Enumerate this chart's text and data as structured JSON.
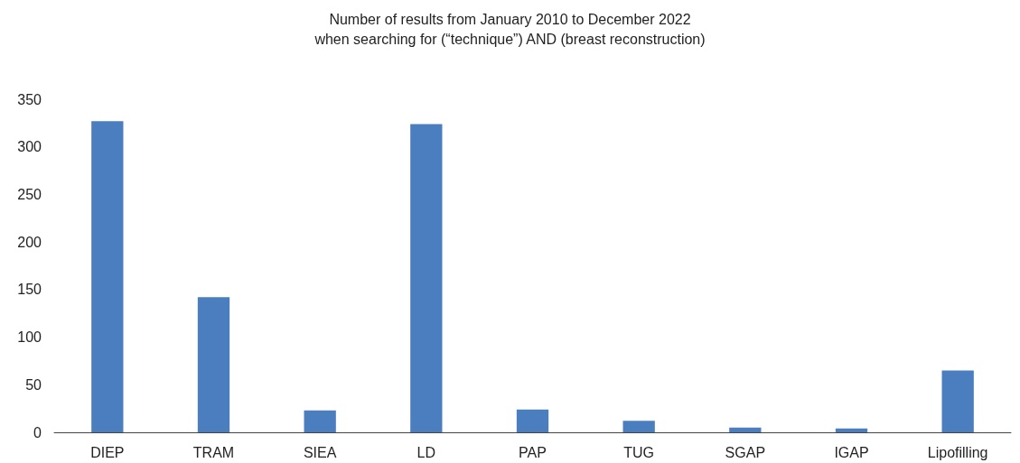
{
  "chart_data": {
    "type": "bar",
    "title": "Number of results from January 2010 to December 2022",
    "subtitle": "when searching for (“technique”) AND (breast reconstruction)",
    "categories": [
      "DIEP",
      "TRAM",
      "SIEA",
      "LD",
      "PAP",
      "TUG",
      "SGAP",
      "IGAP",
      "Lipofilling"
    ],
    "values": [
      327,
      142,
      23,
      324,
      24,
      12,
      5,
      4,
      65
    ],
    "color": "#4a7ebf",
    "ylim": [
      0,
      350
    ],
    "yticks": [
      0,
      50,
      100,
      150,
      200,
      250,
      300,
      350
    ],
    "grid": false
  }
}
